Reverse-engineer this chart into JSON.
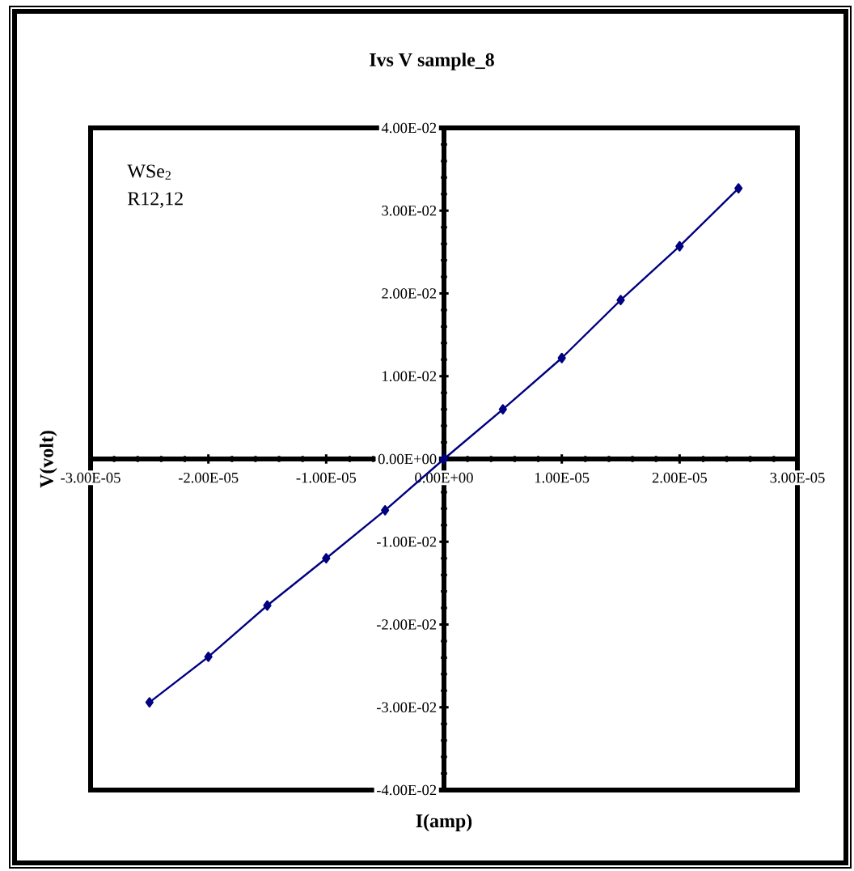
{
  "chart_data": {
    "type": "line",
    "title": "Ivs V sample_8",
    "xlabel": "I(amp)",
    "ylabel": "V(volt)",
    "annotations": [
      "WSe$_{2}$",
      "R12,12"
    ],
    "x": [
      -2.5e-05,
      -2e-05,
      -1.5e-05,
      -1e-05,
      -5e-06,
      0,
      5e-06,
      1e-05,
      1.5e-05,
      2e-05,
      2.5e-05
    ],
    "series": [
      {
        "color": "#000080",
        "values": [
          -0.0294,
          -0.0239,
          -0.0177,
          -0.012,
          -0.0062,
          0,
          0.006,
          0.0122,
          0.0192,
          0.0257,
          0.0327
        ]
      }
    ],
    "xlim": [
      -3e-05,
      3e-05
    ],
    "ylim": [
      -0.04,
      0.04
    ],
    "xticks": [
      {
        "value": -3e-05,
        "label": "-3.00E-05"
      },
      {
        "value": -2e-05,
        "label": "-2.00E-05"
      },
      {
        "value": -1e-05,
        "label": "-1.00E-05"
      },
      {
        "value": 0,
        "label": "0.00E+00"
      },
      {
        "value": 1e-05,
        "label": "1.00E-05"
      },
      {
        "value": 2e-05,
        "label": "2.00E-05"
      },
      {
        "value": 3e-05,
        "label": "3.00E-05"
      }
    ],
    "yticks": [
      {
        "value": -0.04,
        "label": "-4.00E-02"
      },
      {
        "value": -0.03,
        "label": "-3.00E-02"
      },
      {
        "value": -0.02,
        "label": "-2.00E-02"
      },
      {
        "value": -0.01,
        "label": "-1.00E-02"
      },
      {
        "value": 0,
        "label": "0.00E+00"
      },
      {
        "value": 0.01,
        "label": "1.00E-02"
      },
      {
        "value": 0.02,
        "label": "2.00E-02"
      },
      {
        "value": 0.03,
        "label": "3.00E-02"
      },
      {
        "value": 0.04,
        "label": "4.00E-02"
      }
    ],
    "marker": "diamond",
    "line_style": "solid",
    "grid": false,
    "legend": false
  }
}
